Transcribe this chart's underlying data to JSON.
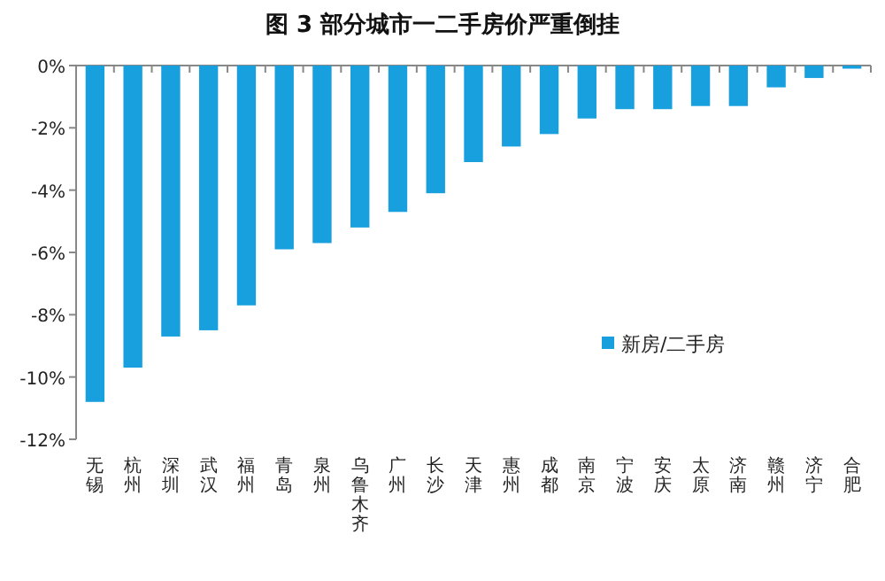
{
  "chart_data": {
    "type": "bar",
    "title": "图 3  部分城市一二手房价严重倒挂",
    "categories": [
      "无锡",
      "杭州",
      "深圳",
      "武汉",
      "福州",
      "青岛",
      "泉州",
      "乌鲁木齐",
      "广州",
      "长沙",
      "天津",
      "惠州",
      "成都",
      "南京",
      "宁波",
      "安庆",
      "太原",
      "济南",
      "赣州",
      "济宁",
      "合肥"
    ],
    "series": [
      {
        "name": "新房/二手房",
        "color": "#18a0de",
        "values": [
          -10.8,
          -9.7,
          -8.7,
          -8.5,
          -7.7,
          -5.9,
          -5.7,
          -5.2,
          -4.7,
          -4.1,
          -3.1,
          -2.6,
          -2.2,
          -1.7,
          -1.4,
          -1.4,
          -1.3,
          -1.3,
          -0.7,
          -0.4,
          -0.1
        ]
      }
    ],
    "ylim": [
      -12,
      0
    ],
    "yticks": [
      {
        "value": 0,
        "label": "0%"
      },
      {
        "value": -2,
        "label": "-2%"
      },
      {
        "value": -4,
        "label": "-4%"
      },
      {
        "value": -6,
        "label": "-6%"
      },
      {
        "value": -8,
        "label": "-8%"
      },
      {
        "value": -10,
        "label": "-10%"
      },
      {
        "value": -12,
        "label": "-12%"
      }
    ],
    "legend": "right"
  }
}
